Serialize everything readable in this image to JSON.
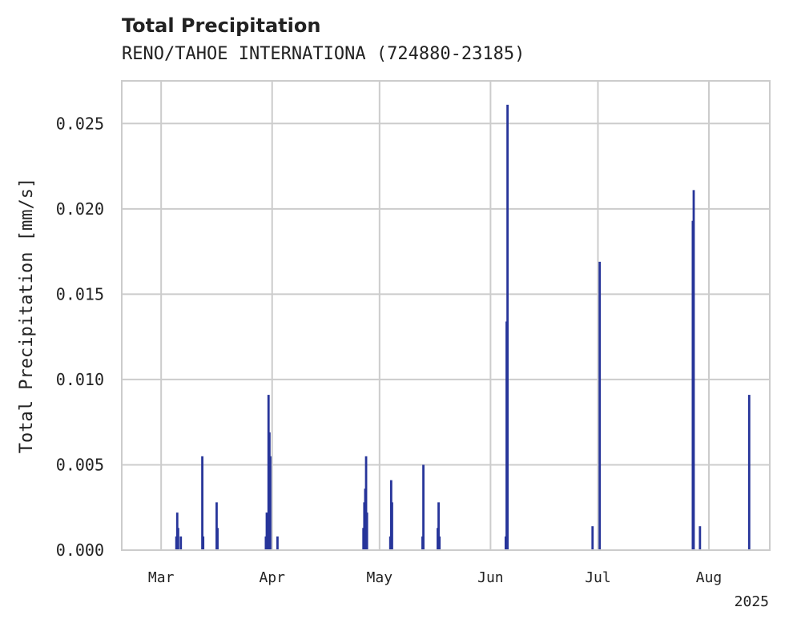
{
  "chart_data": {
    "type": "bar",
    "title": "Total Precipitation",
    "subtitle": "RENO/TAHOE INTERNATIONA (724880-23185)",
    "ylabel": "Total Precipitation [mm/s]",
    "xlabel": "",
    "year_label": "2025",
    "ylim": [
      0,
      0.0275
    ],
    "y_ticks": [
      0.0,
      0.005,
      0.01,
      0.015,
      0.02,
      0.025
    ],
    "y_tick_labels": [
      "0.000",
      "0.005",
      "0.010",
      "0.015",
      "0.020",
      "0.025"
    ],
    "xlim": [
      "2025-02-18",
      "2025-08-18"
    ],
    "x_ticks": [
      "2025-03-01",
      "2025-04-01",
      "2025-05-01",
      "2025-06-01",
      "2025-07-01",
      "2025-08-01"
    ],
    "x_tick_labels": [
      "Mar",
      "Apr",
      "May",
      "Jun",
      "Jul",
      "Aug"
    ],
    "grid": true,
    "color": "#27359a",
    "series": [
      {
        "points": [
          {
            "x": "2025-03-05T06:00",
            "y": 0.0008
          },
          {
            "x": "2025-03-05T12:00",
            "y": 0.0022
          },
          {
            "x": "2025-03-05T18:00",
            "y": 0.0013
          },
          {
            "x": "2025-03-06T12:00",
            "y": 0.0008
          },
          {
            "x": "2025-03-12T12:00",
            "y": 0.0055
          },
          {
            "x": "2025-03-12T18:00",
            "y": 0.0008
          },
          {
            "x": "2025-03-16T12:00",
            "y": 0.0028
          },
          {
            "x": "2025-03-16T18:00",
            "y": 0.0013
          },
          {
            "x": "2025-03-30T06:00",
            "y": 0.0008
          },
          {
            "x": "2025-03-30T12:00",
            "y": 0.0022
          },
          {
            "x": "2025-03-31T00:00",
            "y": 0.0091
          },
          {
            "x": "2025-03-31T06:00",
            "y": 0.0069
          },
          {
            "x": "2025-03-31T12:00",
            "y": 0.0055
          },
          {
            "x": "2025-04-02T12:00",
            "y": 0.0008
          },
          {
            "x": "2025-04-26T12:00",
            "y": 0.0013
          },
          {
            "x": "2025-04-26T18:00",
            "y": 0.0028
          },
          {
            "x": "2025-04-27T00:00",
            "y": 0.0036
          },
          {
            "x": "2025-04-27T06:00",
            "y": 0.0055
          },
          {
            "x": "2025-04-27T12:00",
            "y": 0.0022
          },
          {
            "x": "2025-05-04T00:00",
            "y": 0.0008
          },
          {
            "x": "2025-05-04T06:00",
            "y": 0.0041
          },
          {
            "x": "2025-05-04T12:00",
            "y": 0.0028
          },
          {
            "x": "2025-05-13T00:00",
            "y": 0.0008
          },
          {
            "x": "2025-05-13T06:00",
            "y": 0.005
          },
          {
            "x": "2025-05-17T06:00",
            "y": 0.0013
          },
          {
            "x": "2025-05-17T12:00",
            "y": 0.0028
          },
          {
            "x": "2025-05-17T18:00",
            "y": 0.0008
          },
          {
            "x": "2025-06-05T06:00",
            "y": 0.0008
          },
          {
            "x": "2025-06-05T12:00",
            "y": 0.0134
          },
          {
            "x": "2025-06-05T18:00",
            "y": 0.0261
          },
          {
            "x": "2025-06-29T12:00",
            "y": 0.0014
          },
          {
            "x": "2025-07-01T12:00",
            "y": 0.0169
          },
          {
            "x": "2025-07-27T12:00",
            "y": 0.0193
          },
          {
            "x": "2025-07-27T18:00",
            "y": 0.0211
          },
          {
            "x": "2025-07-29T12:00",
            "y": 0.0014
          },
          {
            "x": "2025-08-12T06:00",
            "y": 0.0091
          }
        ]
      }
    ]
  }
}
